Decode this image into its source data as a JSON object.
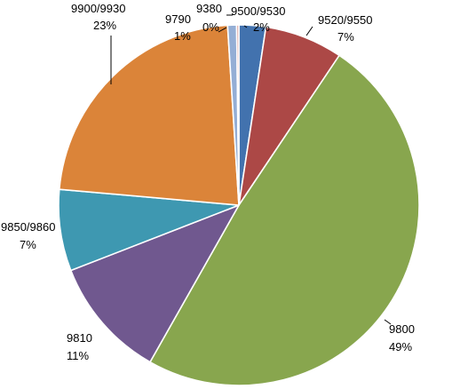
{
  "chart_data": {
    "type": "pie",
    "title": "",
    "slices": [
      {
        "name": "9500/9530",
        "value": 2.4,
        "percent_label": "2%",
        "color": "#4272AE"
      },
      {
        "name": "9520/9550",
        "value": 7.0,
        "percent_label": "7%",
        "color": "#AC4846"
      },
      {
        "name": "9800",
        "value": 48.8,
        "percent_label": "49%",
        "color": "#88A64E"
      },
      {
        "name": "9810",
        "value": 10.9,
        "percent_label": "11%",
        "color": "#70588F"
      },
      {
        "name": "9850/9860",
        "value": 7.3,
        "percent_label": "7%",
        "color": "#3E98B1"
      },
      {
        "name": "9900/9930",
        "value": 22.6,
        "percent_label": "23%",
        "color": "#DB8439"
      },
      {
        "name": "9790",
        "value": 0.8,
        "percent_label": "1%",
        "color": "#94AED5"
      },
      {
        "name": "9380",
        "value": 0.2,
        "percent_label": "0%",
        "color": "#D49895"
      }
    ],
    "legend": "none"
  }
}
